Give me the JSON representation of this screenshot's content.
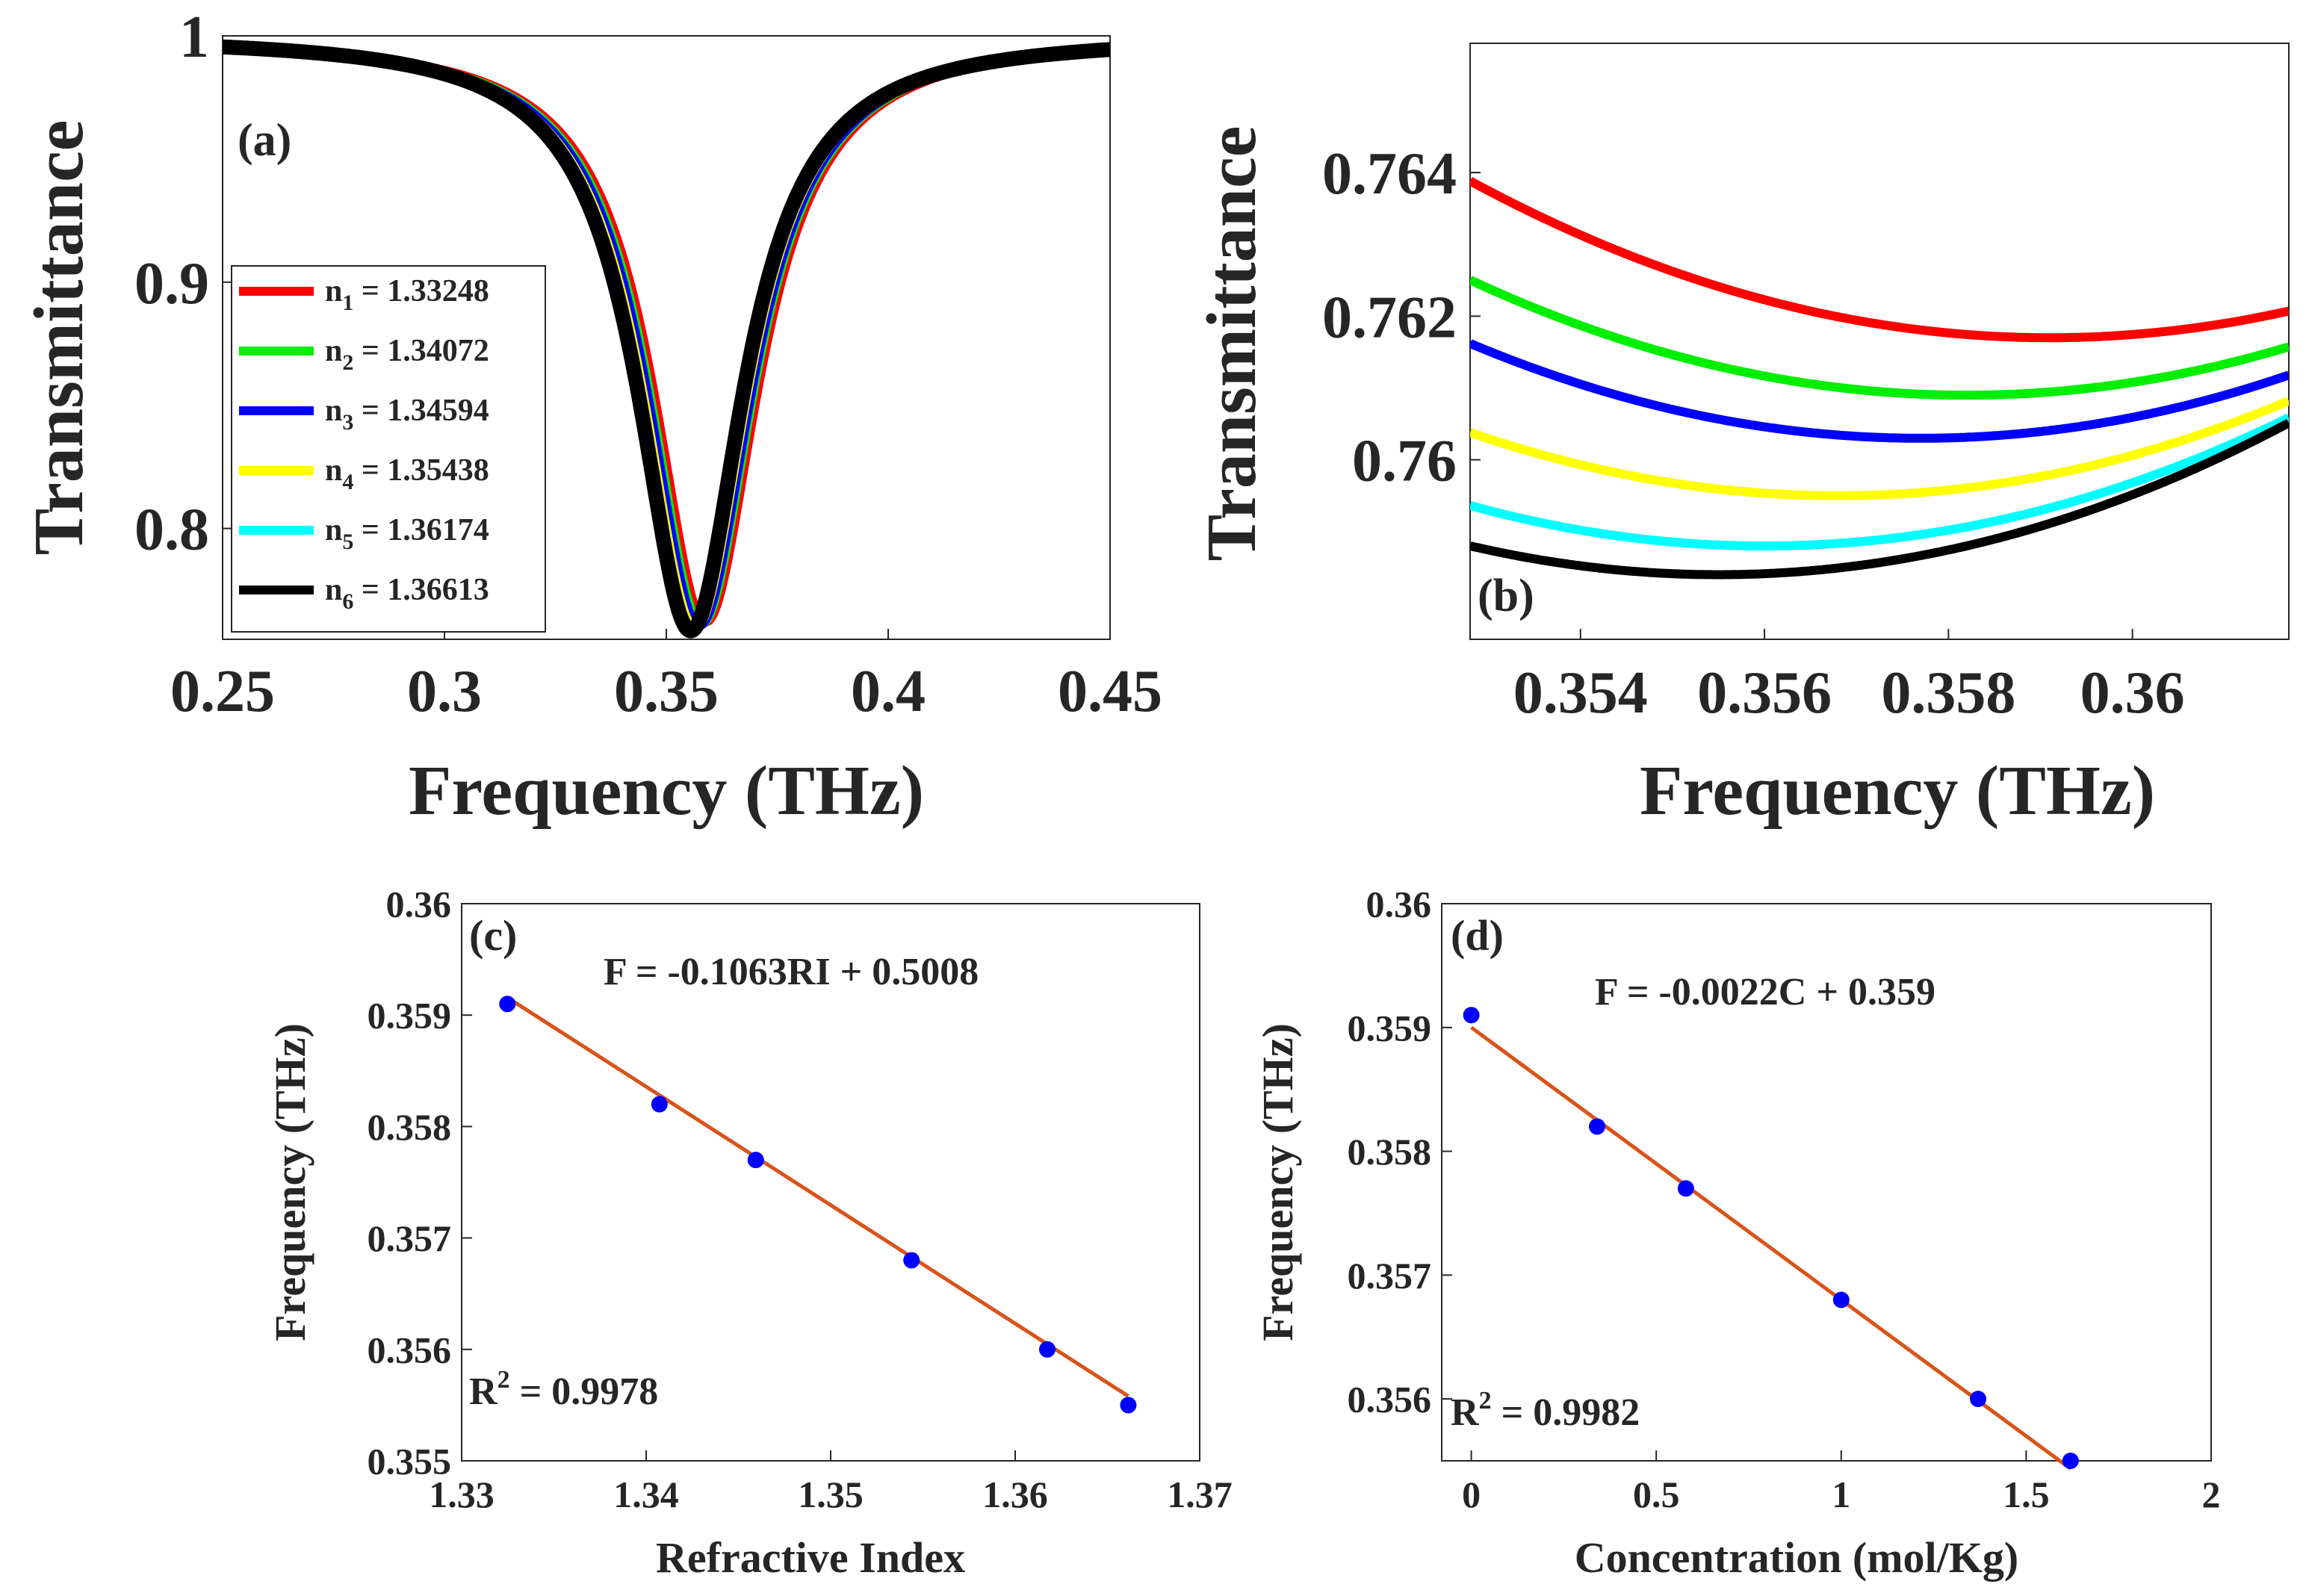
{
  "figure": {
    "panels": [
      {
        "id": "a",
        "label": "(a)",
        "type": "line",
        "xlabel": "Frequency (THz)",
        "ylabel": "Transmittance",
        "xlim": [
          0.25,
          0.45
        ],
        "ylim": [
          0.755,
          1.0
        ],
        "xticks": [
          0.25,
          0.3,
          0.35,
          0.4,
          0.45
        ],
        "xtick_labels": [
          "0.25",
          "0.3",
          "0.35",
          "0.4",
          "0.45"
        ],
        "yticks": [
          0.8,
          0.9,
          1.0
        ],
        "ytick_labels": [
          "0.8",
          "0.9",
          "1"
        ],
        "resonance_halfwidth_thz": 0.0145,
        "legend_position": "lower-left"
      },
      {
        "id": "b",
        "label": "(b)",
        "type": "line",
        "xlabel": "Frequency (THz)",
        "ylabel": "Transmittance",
        "xlim": [
          0.3528,
          0.3617
        ],
        "ylim": [
          0.7575,
          0.7658
        ],
        "xticks": [
          0.354,
          0.356,
          0.358,
          0.36
        ],
        "xtick_labels": [
          "0.354",
          "0.356",
          "0.358",
          "0.36"
        ],
        "yticks": [
          0.76,
          0.762,
          0.764
        ],
        "ytick_labels": [
          "0.76",
          "0.762",
          "0.764"
        ],
        "parabola_curvature": 55
      },
      {
        "id": "c",
        "label": "(c)",
        "type": "scatter",
        "xlabel": "Refractive Index",
        "ylabel": "Frequency (THz)",
        "xlim": [
          1.33,
          1.37
        ],
        "ylim": [
          0.355,
          0.36
        ],
        "xticks": [
          1.33,
          1.34,
          1.35,
          1.36,
          1.37
        ],
        "xtick_labels": [
          "1.33",
          "1.34",
          "1.35",
          "1.36",
          "1.37"
        ],
        "yticks": [
          0.355,
          0.356,
          0.357,
          0.358,
          0.359,
          0.36
        ],
        "ytick_labels": [
          "0.355",
          "0.356",
          "0.357",
          "0.358",
          "0.359",
          "0.36"
        ],
        "x": [
          1.33248,
          1.34072,
          1.34594,
          1.35438,
          1.36174,
          1.36613
        ],
        "y": [
          0.3591,
          0.3582,
          0.3577,
          0.3568,
          0.356,
          0.3555
        ],
        "fit": {
          "slope": -0.1063,
          "intercept": 0.5008,
          "equation": "F = -0.1063RI + 0.5008",
          "r2_prefix": "R",
          "r2_sup": "2",
          "r2_value": " = 0.9978"
        }
      },
      {
        "id": "d",
        "label": "(d)",
        "type": "scatter",
        "xlabel": "Concentration (mol/Kg)",
        "ylabel": "Frequency (THz)",
        "xlim": [
          -0.08,
          2.0
        ],
        "ylim": [
          0.3555,
          0.36
        ],
        "xticks": [
          0,
          0.5,
          1,
          1.5,
          2
        ],
        "xtick_labels": [
          "0",
          "0.5",
          "1",
          "1.5",
          "2"
        ],
        "yticks": [
          0.356,
          0.357,
          0.358,
          0.359,
          0.36
        ],
        "ytick_labels": [
          "0.356",
          "0.357",
          "0.358",
          "0.359",
          "0.36"
        ],
        "x": [
          0,
          0.34,
          0.58,
          1.0,
          1.37,
          1.62
        ],
        "y": [
          0.3591,
          0.3582,
          0.3577,
          0.3568,
          0.356,
          0.3555
        ],
        "fit": {
          "slope": -0.0022,
          "intercept": 0.359,
          "equation": "F = -0.0022C + 0.359",
          "r2_prefix": "R",
          "r2_sup": "2",
          "r2_value": " = 0.9982"
        }
      }
    ]
  },
  "chart_data": [
    {
      "type": "line",
      "title": "(a)",
      "xlabel": "Frequency (THz)",
      "ylabel": "Transmittance",
      "xlim": [
        0.25,
        0.45
      ],
      "ylim": [
        0.755,
        1.0
      ],
      "series": [
        {
          "name": "n1 = 1.33248",
          "resonance_thz": 0.3591,
          "min_transmittance": 0.7617
        },
        {
          "name": "n2 = 1.34072",
          "resonance_thz": 0.3582,
          "min_transmittance": 0.7609
        },
        {
          "name": "n3 = 1.34594",
          "resonance_thz": 0.3577,
          "min_transmittance": 0.7603
        },
        {
          "name": "n4 = 1.35438",
          "resonance_thz": 0.3568,
          "min_transmittance": 0.7595
        },
        {
          "name": "n5 = 1.36174",
          "resonance_thz": 0.356,
          "min_transmittance": 0.7588
        },
        {
          "name": "n6 = 1.36613",
          "resonance_thz": 0.3555,
          "min_transmittance": 0.7584
        }
      ]
    },
    {
      "type": "line",
      "title": "(b)",
      "xlabel": "Frequency (THz)",
      "ylabel": "Transmittance",
      "xlim": [
        0.3528,
        0.3617
      ],
      "ylim": [
        0.7575,
        0.7658
      ],
      "series": [
        {
          "name": "n1",
          "resonance_thz": 0.3591,
          "min_transmittance": 0.7617
        },
        {
          "name": "n2",
          "resonance_thz": 0.3582,
          "min_transmittance": 0.7609
        },
        {
          "name": "n3",
          "resonance_thz": 0.3577,
          "min_transmittance": 0.7603
        },
        {
          "name": "n4",
          "resonance_thz": 0.3568,
          "min_transmittance": 0.7595
        },
        {
          "name": "n5",
          "resonance_thz": 0.356,
          "min_transmittance": 0.7588
        },
        {
          "name": "n6",
          "resonance_thz": 0.3555,
          "min_transmittance": 0.7584
        }
      ]
    },
    {
      "type": "scatter",
      "title": "(c)",
      "xlabel": "Refractive Index",
      "ylabel": "Frequency (THz)",
      "x": [
        1.33248,
        1.34072,
        1.34594,
        1.35438,
        1.36174,
        1.36613
      ],
      "y": [
        0.3591,
        0.3582,
        0.3577,
        0.3568,
        0.356,
        0.3555
      ],
      "fit": "F = -0.1063RI + 0.5008",
      "r2": 0.9978
    },
    {
      "type": "scatter",
      "title": "(d)",
      "xlabel": "Concentration (mol/Kg)",
      "ylabel": "Frequency (THz)",
      "x": [
        0,
        0.34,
        0.58,
        1.0,
        1.37,
        1.62
      ],
      "y": [
        0.3591,
        0.3582,
        0.3577,
        0.3568,
        0.356,
        0.3555
      ],
      "fit": "F = -0.0022C + 0.359",
      "r2": 0.9982
    }
  ],
  "legend": {
    "entries": [
      {
        "sym": "n",
        "sub": "1",
        "value": " = 1.33248"
      },
      {
        "sym": "n",
        "sub": "2",
        "value": " = 1.34072"
      },
      {
        "sym": "n",
        "sub": "3",
        "value": " = 1.34594"
      },
      {
        "sym": "n",
        "sub": "4",
        "value": " = 1.35438"
      },
      {
        "sym": "n",
        "sub": "5",
        "value": " = 1.36174"
      },
      {
        "sym": "n",
        "sub": "6",
        "value": " = 1.36613"
      }
    ]
  },
  "colors": {
    "series": [
      "#ff0000",
      "#00ee00",
      "#0000ff",
      "#ffff00",
      "#00ffff",
      "#000000"
    ],
    "fit_line": "#d95319",
    "markers": "#0000ff",
    "axes": "#262626"
  }
}
